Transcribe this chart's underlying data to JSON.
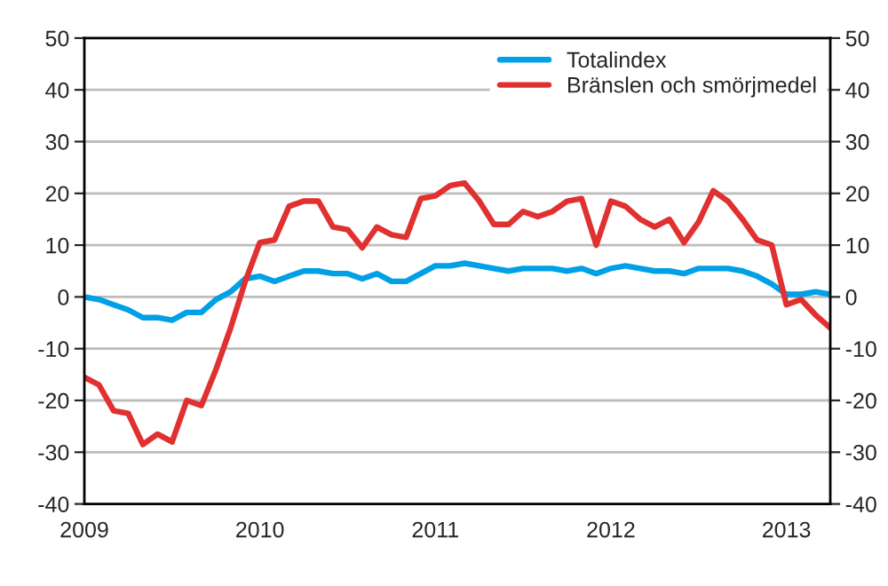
{
  "chart_data": {
    "type": "line",
    "x": [
      "2009-01",
      "2009-02",
      "2009-03",
      "2009-04",
      "2009-05",
      "2009-06",
      "2009-07",
      "2009-08",
      "2009-09",
      "2009-10",
      "2009-11",
      "2009-12",
      "2010-01",
      "2010-02",
      "2010-03",
      "2010-04",
      "2010-05",
      "2010-06",
      "2010-07",
      "2010-08",
      "2010-09",
      "2010-10",
      "2010-11",
      "2010-12",
      "2011-01",
      "2011-02",
      "2011-03",
      "2011-04",
      "2011-05",
      "2011-06",
      "2011-07",
      "2011-08",
      "2011-09",
      "2011-10",
      "2011-11",
      "2011-12",
      "2012-01",
      "2012-02",
      "2012-03",
      "2012-04",
      "2012-05",
      "2012-06",
      "2012-07",
      "2012-08",
      "2012-09",
      "2012-10",
      "2012-11",
      "2012-12",
      "2013-01",
      "2013-02",
      "2013-03",
      "2013-04"
    ],
    "series": [
      {
        "name": "Totalindex",
        "color": "#00a0e6",
        "values": [
          0,
          -0.5,
          -1.5,
          -2.5,
          -4,
          -4,
          -4.5,
          -3,
          -3,
          -0.5,
          1,
          3.5,
          4,
          3,
          4,
          5,
          5,
          4.5,
          4.5,
          3.5,
          4.5,
          3,
          3,
          4.5,
          6,
          6,
          6.5,
          6,
          5.5,
          5,
          5.5,
          5.5,
          5.5,
          5,
          5.5,
          4.5,
          5.5,
          6,
          5.5,
          5,
          5,
          4.5,
          5.5,
          5.5,
          5.5,
          5,
          4,
          2.5,
          0.5,
          0.5,
          1,
          0.5
        ]
      },
      {
        "name": "Bränslen och smörjmedel",
        "color": "#e03030",
        "values": [
          -15.5,
          -17,
          -22,
          -22.5,
          -28.5,
          -26.5,
          -28,
          -20,
          -21,
          -14,
          -6,
          3,
          10.5,
          11,
          17.5,
          18.5,
          18.5,
          13.5,
          13,
          9.5,
          13.5,
          12,
          11.5,
          19,
          19.5,
          21.5,
          22,
          18.5,
          14,
          14,
          16.5,
          15.5,
          16.5,
          18.5,
          19,
          10,
          18.5,
          17.5,
          15,
          13.5,
          15,
          10.5,
          14.5,
          20.5,
          18.5,
          15,
          11,
          10,
          -1.5,
          -0.5,
          -3.5,
          -6
        ]
      }
    ],
    "xlim": [
      "2009-01",
      "2013-04"
    ],
    "xticks": [
      {
        "value": "2009-01",
        "label": "2009"
      },
      {
        "value": "2010-01",
        "label": "2010"
      },
      {
        "value": "2011-01",
        "label": "2011"
      },
      {
        "value": "2012-01",
        "label": "2012"
      },
      {
        "value": "2013-01",
        "label": "2013"
      }
    ],
    "ylim": [
      -40,
      50
    ],
    "yticks": [
      -40,
      -30,
      -20,
      -10,
      0,
      10,
      20,
      30,
      40,
      50
    ],
    "y2lim": [
      -40,
      50
    ],
    "y2ticks": [
      -40,
      -30,
      -20,
      -10,
      0,
      10,
      20,
      30,
      40,
      50
    ],
    "grid": "y",
    "legend": "top right",
    "line_style": "solid",
    "marker": "none"
  }
}
